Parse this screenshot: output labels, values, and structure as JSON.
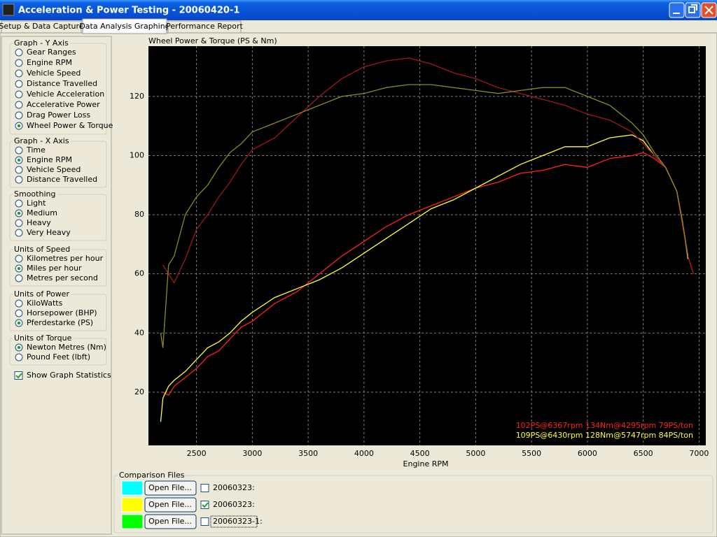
{
  "window": {
    "title": "Acceleration & Power Testing - 20060420-1"
  },
  "tabs": {
    "items": [
      "Setup & Data Capture",
      "Data Analysis Graphing",
      "Performance Report"
    ],
    "active": 1
  },
  "groups": [
    {
      "title": "Graph - Y Axis",
      "options": [
        "Gear Ranges",
        "Engine RPM",
        "Vehicle Speed",
        "Distance Travelled",
        "Vehicle Acceleration",
        "Accelerative Power",
        "Drag Power Loss",
        "Wheel Power & Torque"
      ],
      "selected": 7
    },
    {
      "title": "Graph - X Axis",
      "options": [
        "Time",
        "Engine RPM",
        "Vehicle Speed",
        "Distance Travelled"
      ],
      "selected": 1
    },
    {
      "title": "Smoothing",
      "options": [
        "Light",
        "Medium",
        "Heavy",
        "Very Heavy"
      ],
      "selected": 1
    },
    {
      "title": "Units of Speed",
      "options": [
        "Kilometres per hour",
        "Miles per hour",
        "Metres per second"
      ],
      "selected": 1
    },
    {
      "title": "Units of Power",
      "options": [
        "KiloWatts",
        "Horsepower (BHP)",
        "Pferdestarke (PS)"
      ],
      "selected": 2
    },
    {
      "title": "Units of Torque",
      "options": [
        "Newton Metres (Nm)",
        "Pound Feet (lbft)"
      ],
      "selected": 0
    }
  ],
  "statistics_checkbox": {
    "label": "Show Graph Statistics",
    "checked": true
  },
  "comparison": {
    "title": "Comparison Files",
    "rows": [
      {
        "color": "#00ffff",
        "button": "Open File...",
        "label": "20060323:",
        "checked": false
      },
      {
        "color": "#ffff00",
        "button": "Open File...",
        "label": "20060323:",
        "checked": true
      },
      {
        "color": "#00ff00",
        "button": "Open File...",
        "label": "20060323-1:",
        "checked": false
      }
    ]
  },
  "chart_data": {
    "type": "line",
    "title": "Wheel Power & Torque (PS & Nm)",
    "x_label": "Engine RPM",
    "x": [
      2180,
      2200,
      2250,
      2300,
      2400,
      2500,
      2600,
      2700,
      2800,
      2900,
      3000,
      3200,
      3400,
      3600,
      3800,
      4000,
      4200,
      4400,
      4600,
      4800,
      5000,
      5200,
      5400,
      5600,
      5800,
      6000,
      6200,
      6400,
      6500,
      6600,
      6700,
      6800,
      6850,
      6900,
      6950
    ],
    "series": [
      {
        "color": "#ff2020",
        "values": [
          null,
          20,
          19,
          22,
          25,
          28,
          32,
          34,
          38,
          42,
          44,
          50,
          54,
          60,
          66,
          71,
          76,
          80,
          83,
          86,
          89,
          91,
          94,
          95,
          97,
          96,
          99,
          100,
          101,
          99,
          96,
          88,
          77,
          66,
          60
        ]
      },
      {
        "color": "#ffff30",
        "values": [
          10,
          18,
          22,
          24,
          27,
          31,
          35,
          37,
          40,
          44,
          47,
          52,
          55,
          58,
          62,
          67,
          72,
          77,
          82,
          85,
          89,
          93,
          97,
          100,
          103,
          103,
          106,
          107,
          105,
          100,
          96,
          88,
          78,
          65,
          null
        ]
      },
      {
        "color": "#a01818",
        "values": [
          null,
          63,
          60,
          57,
          65,
          75,
          80,
          86,
          91,
          97,
          102,
          106,
          113,
          120,
          126,
          130,
          132,
          133,
          131,
          128,
          126,
          123,
          121,
          119,
          117,
          114,
          112,
          108,
          104,
          100,
          96,
          88,
          77,
          66,
          60
        ]
      },
      {
        "color": "#8a8a20",
        "values": [
          40,
          35,
          63,
          66,
          80,
          86,
          90,
          96,
          101,
          104,
          108,
          111,
          114,
          117,
          120,
          121,
          123,
          124,
          124,
          123,
          122,
          121,
          122,
          123,
          123,
          120,
          117,
          111,
          107,
          101,
          96,
          88,
          78,
          66,
          null
        ]
      }
    ],
    "xlim": [
      2070,
      7060
    ],
    "ylim": [
      2,
      137
    ],
    "xticks": [
      2500,
      3000,
      3500,
      4000,
      4500,
      5000,
      5500,
      6000,
      6500,
      7000
    ],
    "yticks": [
      20,
      40,
      60,
      80,
      100,
      120
    ],
    "grid": true,
    "annotations": [
      {
        "text": "102PS@6367rpm 134Nm@4295rpm 79PS/ton",
        "color": "#ff2020"
      },
      {
        "text": "109PS@6430rpm 128Nm@5747rpm 84PS/ton",
        "color": "#ffff30"
      }
    ]
  }
}
